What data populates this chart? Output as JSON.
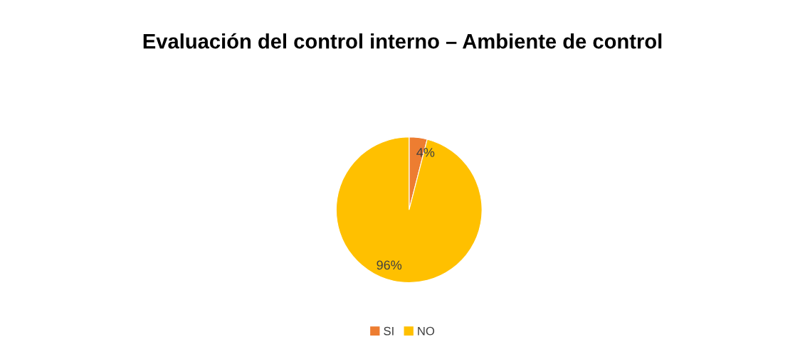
{
  "chart_data": {
    "type": "pie",
    "title": "Evaluación del control interno – Ambiente de control",
    "categories": [
      "SI",
      "NO"
    ],
    "values": [
      4,
      96
    ],
    "colors": [
      "#ed7d31",
      "#ffc000"
    ],
    "value_labels": [
      "4%",
      "96%"
    ],
    "legend": "bottom"
  }
}
